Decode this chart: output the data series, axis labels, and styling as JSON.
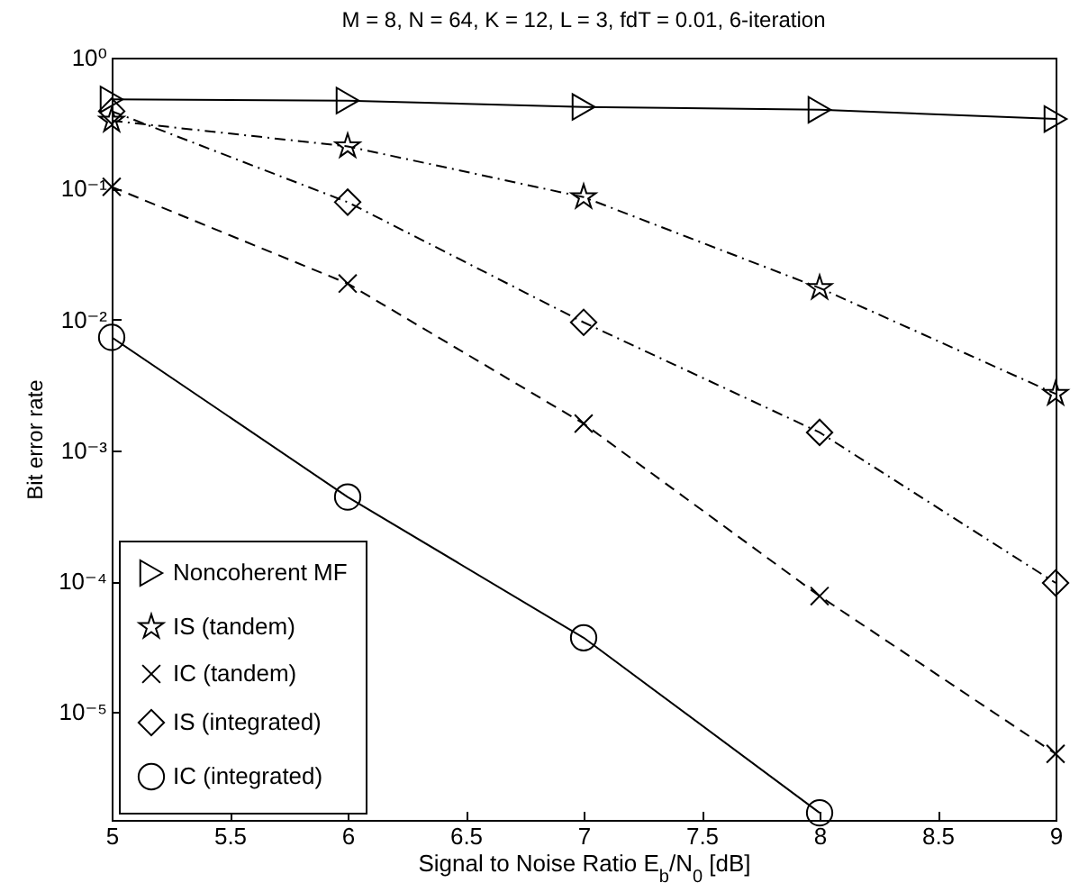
{
  "chart_data": {
    "type": "line",
    "title": "M = 8, N = 64, K = 12, L = 3, fdT = 0.01, 6-iteration",
    "xlabel": "Signal to Noise Ratio E$_{b}$/N$_{0}$ [dB]",
    "ylabel": "Bit error rate",
    "x": [
      5,
      6,
      7,
      8,
      9
    ],
    "series": [
      {
        "name": "Noncoherent MF",
        "color": "#000000",
        "marker": "triangle",
        "line_style": "solid",
        "values": [
          0.48,
          0.47,
          0.42,
          0.4,
          0.34
        ]
      },
      {
        "name": "IS (tandem)",
        "color": "#000000",
        "marker": "star",
        "line_style": "dashdot",
        "values": [
          0.33,
          0.21,
          0.086,
          0.0174,
          0.0027
        ]
      },
      {
        "name": "IC (tandem)",
        "color": "#000000",
        "marker": "cross",
        "line_style": "dashed",
        "values": [
          0.103,
          0.0188,
          0.0016,
          7.7e-05,
          4.8e-06
        ]
      },
      {
        "name": "IS (integrated)",
        "color": "#000000",
        "marker": "diamond",
        "line_style": "dashdot",
        "values": [
          0.39,
          0.0787,
          0.0095,
          0.00137,
          9.7e-05
        ]
      },
      {
        "name": "IC (integrated)",
        "color": "#000000",
        "marker": "circle",
        "line_style": "solid",
        "values": [
          0.0073,
          0.00044,
          3.7e-05,
          1.7e-06,
          null
        ]
      }
    ],
    "log": "y",
    "xlim": [
      5,
      9
    ],
    "xticks": [
      5,
      5.5,
      6,
      6.5,
      7,
      7.5,
      8,
      8.5,
      9
    ],
    "ylim": [
      1.5e-06,
      1
    ],
    "yticks": [
      {
        "value": 1,
        "label": "10⁰"
      },
      {
        "value": 0.1,
        "label": "10⁻¹"
      },
      {
        "value": 0.01,
        "label": "10⁻²"
      },
      {
        "value": 0.001,
        "label": "10⁻³"
      },
      {
        "value": 0.0001,
        "label": "10⁻⁴"
      },
      {
        "value": 1e-05,
        "label": "10⁻⁵"
      }
    ],
    "grid": false,
    "legend": "bottom left"
  }
}
